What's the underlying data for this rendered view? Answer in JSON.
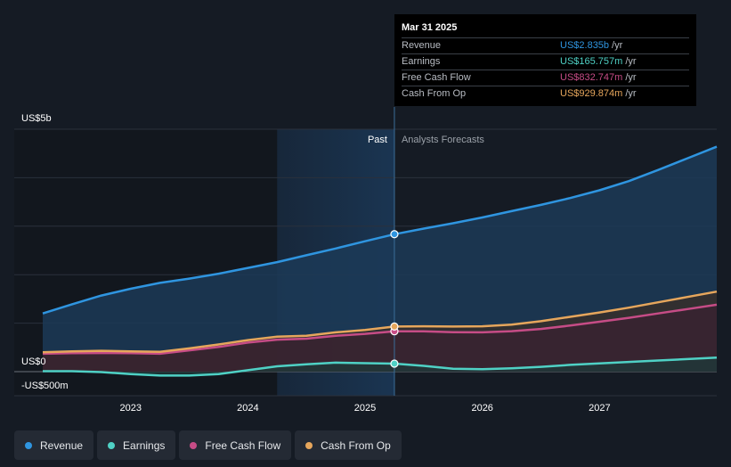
{
  "chart_data": {
    "type": "line",
    "y_axis": {
      "top_label": "US$5b",
      "zero_label": "US$0",
      "bottom_label": "-US$500m"
    },
    "ylim": [
      -500,
      5000
    ],
    "x_ticks": [
      "2023",
      "2024",
      "2025",
      "2026",
      "2027"
    ],
    "divider_labels": {
      "past": "Past",
      "forecast": "Analysts Forecasts"
    },
    "series": [
      {
        "name": "Revenue",
        "key": "revenue",
        "color": "#2f95e0",
        "fill": "#1c3a57",
        "points": [
          [
            2022.25,
            1200
          ],
          [
            2022.5,
            1390
          ],
          [
            2022.75,
            1570
          ],
          [
            2023.0,
            1710
          ],
          [
            2023.25,
            1830
          ],
          [
            2023.5,
            1920
          ],
          [
            2023.75,
            2020
          ],
          [
            2024.0,
            2140
          ],
          [
            2024.25,
            2260
          ],
          [
            2024.5,
            2400
          ],
          [
            2024.75,
            2540
          ],
          [
            2025.0,
            2690
          ],
          [
            2025.25,
            2835
          ],
          [
            2025.5,
            2950
          ],
          [
            2025.75,
            3060
          ],
          [
            2026.0,
            3180
          ],
          [
            2026.25,
            3310
          ],
          [
            2026.5,
            3440
          ],
          [
            2026.75,
            3580
          ],
          [
            2027.0,
            3740
          ],
          [
            2027.25,
            3930
          ],
          [
            2027.5,
            4160
          ],
          [
            2027.75,
            4400
          ],
          [
            2028.0,
            4640
          ]
        ]
      },
      {
        "name": "Earnings",
        "key": "earnings",
        "color": "#4fd1c5",
        "fill": "#1d3a3a",
        "points": [
          [
            2022.25,
            10
          ],
          [
            2022.5,
            10
          ],
          [
            2022.75,
            -10
          ],
          [
            2023.0,
            -50
          ],
          [
            2023.25,
            -80
          ],
          [
            2023.5,
            -80
          ],
          [
            2023.75,
            -50
          ],
          [
            2024.0,
            30
          ],
          [
            2024.25,
            110
          ],
          [
            2024.5,
            150
          ],
          [
            2024.75,
            185
          ],
          [
            2025.0,
            175
          ],
          [
            2025.25,
            166
          ],
          [
            2025.5,
            120
          ],
          [
            2025.75,
            60
          ],
          [
            2026.0,
            50
          ],
          [
            2026.25,
            70
          ],
          [
            2026.5,
            100
          ],
          [
            2026.75,
            140
          ],
          [
            2027.0,
            170
          ],
          [
            2027.25,
            200
          ],
          [
            2027.5,
            230
          ],
          [
            2027.75,
            260
          ],
          [
            2028.0,
            290
          ]
        ]
      },
      {
        "name": "Free Cash Flow",
        "key": "fcf",
        "color": "#c64c86",
        "fill": "#3a2230",
        "points": [
          [
            2022.25,
            370
          ],
          [
            2022.5,
            380
          ],
          [
            2022.75,
            385
          ],
          [
            2023.0,
            380
          ],
          [
            2023.25,
            370
          ],
          [
            2023.5,
            440
          ],
          [
            2023.75,
            510
          ],
          [
            2024.0,
            600
          ],
          [
            2024.25,
            660
          ],
          [
            2024.5,
            680
          ],
          [
            2024.75,
            740
          ],
          [
            2025.0,
            780
          ],
          [
            2025.25,
            833
          ],
          [
            2025.5,
            830
          ],
          [
            2025.75,
            815
          ],
          [
            2026.0,
            810
          ],
          [
            2026.25,
            835
          ],
          [
            2026.5,
            880
          ],
          [
            2026.75,
            950
          ],
          [
            2027.0,
            1030
          ],
          [
            2027.25,
            1110
          ],
          [
            2027.5,
            1200
          ],
          [
            2027.75,
            1290
          ],
          [
            2028.0,
            1380
          ]
        ]
      },
      {
        "name": "Cash From Op",
        "key": "cfo",
        "color": "#e6a65c",
        "fill": "#3b2e26",
        "points": [
          [
            2022.25,
            400
          ],
          [
            2022.5,
            420
          ],
          [
            2022.75,
            430
          ],
          [
            2023.0,
            420
          ],
          [
            2023.25,
            410
          ],
          [
            2023.5,
            480
          ],
          [
            2023.75,
            560
          ],
          [
            2024.0,
            650
          ],
          [
            2024.25,
            720
          ],
          [
            2024.5,
            740
          ],
          [
            2024.75,
            810
          ],
          [
            2025.0,
            860
          ],
          [
            2025.25,
            930
          ],
          [
            2025.5,
            935
          ],
          [
            2025.75,
            930
          ],
          [
            2026.0,
            935
          ],
          [
            2026.25,
            970
          ],
          [
            2026.5,
            1040
          ],
          [
            2026.75,
            1130
          ],
          [
            2027.0,
            1220
          ],
          [
            2027.25,
            1320
          ],
          [
            2027.5,
            1430
          ],
          [
            2027.75,
            1540
          ],
          [
            2028.0,
            1650
          ]
        ]
      }
    ],
    "highlight_x": 2025.25,
    "past_shade_start": 2024.25,
    "grid": true,
    "legend_position": "bottom-left"
  },
  "tooltip": {
    "date": "Mar 31 2025",
    "rows": [
      {
        "label": "Revenue",
        "value": "US$2.835b",
        "unit": "/yr",
        "color": "#2f95e0"
      },
      {
        "label": "Earnings",
        "value": "US$165.757m",
        "unit": "/yr",
        "color": "#4fd1c5"
      },
      {
        "label": "Free Cash Flow",
        "value": "US$832.747m",
        "unit": "/yr",
        "color": "#c64c86"
      },
      {
        "label": "Cash From Op",
        "value": "US$929.874m",
        "unit": "/yr",
        "color": "#e6a65c"
      }
    ]
  },
  "legend": [
    {
      "label": "Revenue",
      "color": "#2f95e0"
    },
    {
      "label": "Earnings",
      "color": "#4fd1c5"
    },
    {
      "label": "Free Cash Flow",
      "color": "#c64c86"
    },
    {
      "label": "Cash From Op",
      "color": "#e6a65c"
    }
  ]
}
